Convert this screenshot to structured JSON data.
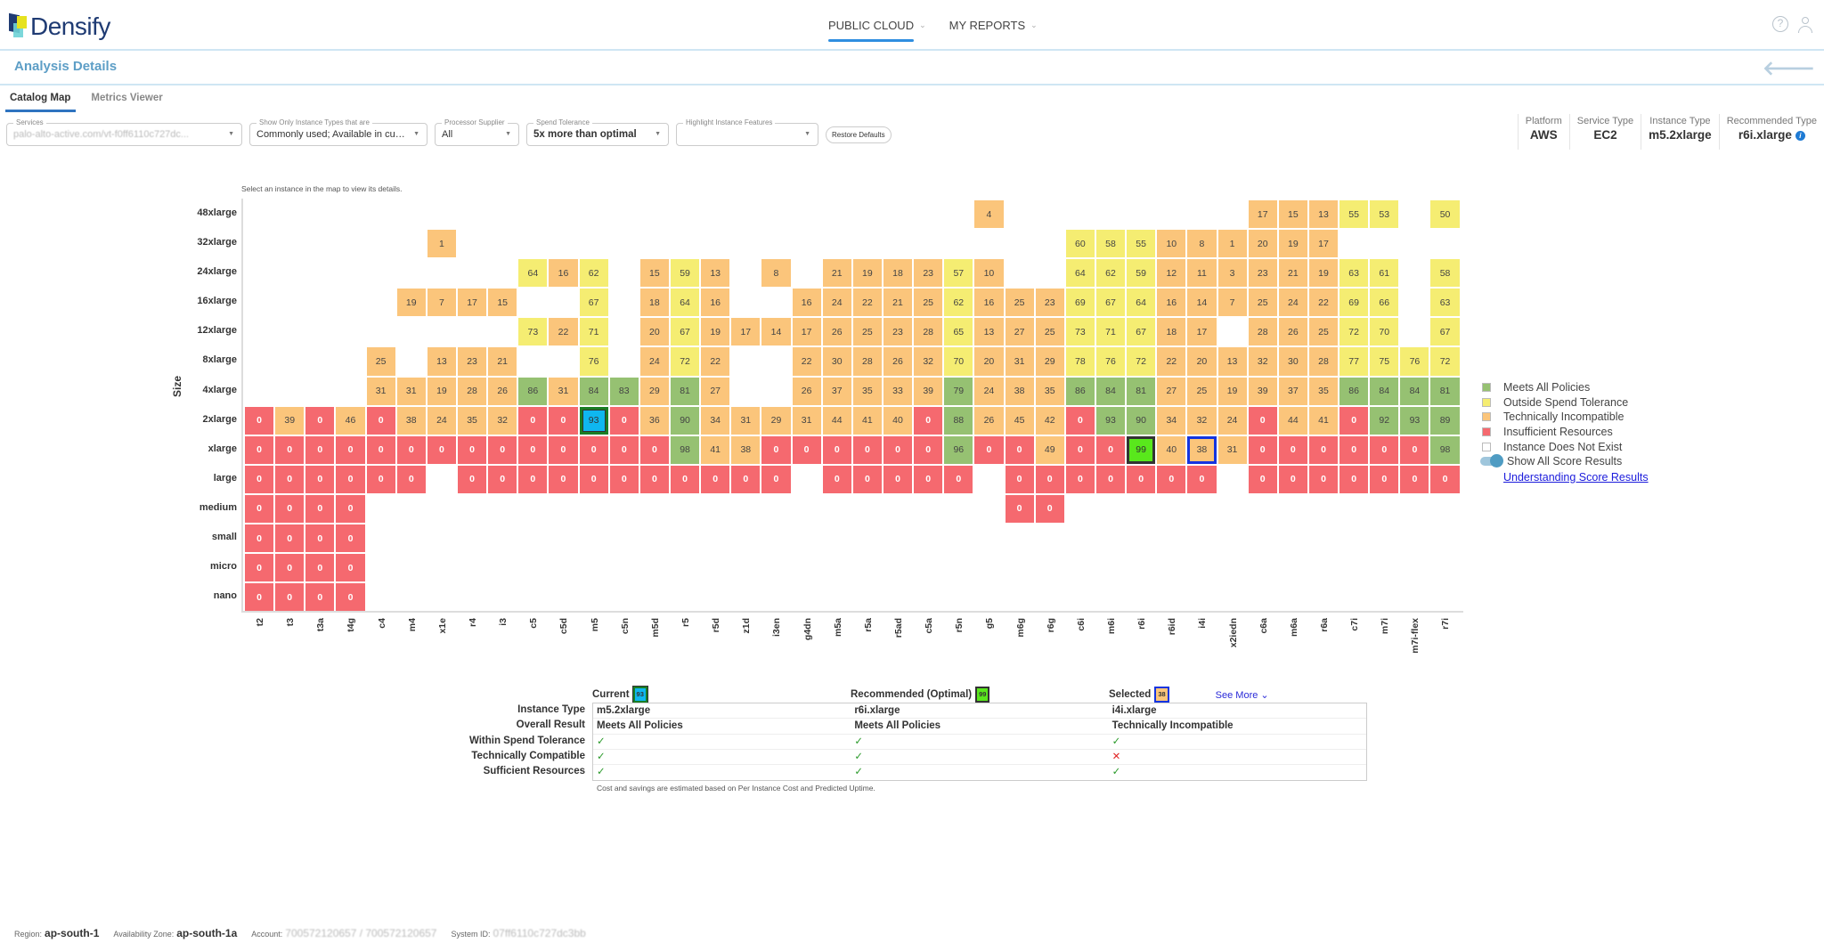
{
  "app": {
    "logo_text": "Densify"
  },
  "nav": {
    "items": [
      {
        "label": "PUBLIC CLOUD",
        "active": true
      },
      {
        "label": "MY REPORTS",
        "active": false
      }
    ],
    "chevron": "⌄"
  },
  "icons": {
    "help": "?",
    "back": "🡐",
    "info": "i"
  },
  "page": {
    "title": "Analysis Details"
  },
  "tabs": [
    {
      "label": "Catalog Map",
      "active": true
    },
    {
      "label": "Metrics Viewer",
      "active": false
    }
  ],
  "filters": {
    "services": {
      "label": "Services",
      "value": "palo-alto-active.com/vt-f0ff6110c727dc..."
    },
    "instance_types": {
      "label": "Show Only Instance Types that are",
      "value": "Commonly used; Available in curr..."
    },
    "processor": {
      "label": "Processor Supplier",
      "value": "All"
    },
    "spend_tolerance": {
      "label": "Spend Tolerance",
      "value": "5x more than optimal"
    },
    "highlight": {
      "label": "Highlight Instance Features",
      "value": ""
    },
    "restore_label": "Restore Defaults"
  },
  "summary": {
    "platform": {
      "label": "Platform",
      "value": "AWS"
    },
    "service_type": {
      "label": "Service Type",
      "value": "EC2"
    },
    "instance_type": {
      "label": "Instance Type",
      "value": "m5.2xlarge"
    },
    "recommended_type": {
      "label": "Recommended Type",
      "value": "r6i.xlarge"
    }
  },
  "map": {
    "hint": "Select an instance in the map to view its details.",
    "y_title": "Size"
  },
  "chart_data": {
    "type": "heatmap",
    "title": "Catalog Map",
    "ylabel": "Size",
    "xlabel": "",
    "x": [
      "t2",
      "t3",
      "t3a",
      "t4g",
      "c4",
      "m4",
      "x1e",
      "r4",
      "i3",
      "c5",
      "c5d",
      "m5",
      "c5n",
      "m5d",
      "r5",
      "r5d",
      "z1d",
      "i3en",
      "g4dn",
      "m5a",
      "r5a",
      "r5ad",
      "c5a",
      "r5n",
      "g5",
      "m6g",
      "r6g",
      "c6i",
      "m6i",
      "r6i",
      "r6id",
      "i4i",
      "x2iedn",
      "c6a",
      "m6a",
      "r6a",
      "c7i",
      "m7i",
      "m7i-flex",
      "r7i"
    ],
    "y": [
      "48xlarge",
      "32xlarge",
      "24xlarge",
      "16xlarge",
      "12xlarge",
      "8xlarge",
      "4xlarge",
      "2xlarge",
      "xlarge",
      "large",
      "medium",
      "small",
      "micro",
      "nano"
    ],
    "legend": {
      "G": "Meets All Policies",
      "Y": "Outside Spend Tolerance",
      "O": "Technically Incompatible",
      "R": "Insufficient Resources",
      "E": "Instance Does Not Exist"
    },
    "colors": {
      "G": "#96c172",
      "Y": "#f5ed72",
      "O": "#fbc57b",
      "R": "#f5696f",
      "current": "#0fb7f0",
      "recommended": "#59e81c",
      "selected_border": "#1434e0"
    },
    "highlights": {
      "current": "m5.2xlarge",
      "recommended": "r6i.xlarge",
      "selected": "i4i.xlarge"
    },
    "rows": [
      [
        "",
        "",
        "",
        "",
        "",
        "",
        "",
        "",
        "",
        "",
        "",
        "",
        "",
        "",
        "",
        "",
        "",
        "",
        "",
        "",
        "",
        "",
        "",
        "",
        "O4",
        "",
        "",
        "",
        "",
        "",
        "",
        "",
        "",
        "O17",
        "O15",
        "O13",
        "Y55",
        "Y53",
        "",
        "Y50"
      ],
      [
        "",
        "",
        "",
        "",
        "",
        "",
        "O1",
        "",
        "",
        "",
        "",
        "",
        "",
        "",
        "",
        "",
        "",
        "",
        "",
        "",
        "",
        "",
        "",
        "",
        "",
        "",
        "",
        "Y60",
        "Y58",
        "Y55",
        "O10",
        "O8",
        "O1",
        "O20",
        "O19",
        "O17",
        "",
        "",
        "",
        ""
      ],
      [
        "",
        "",
        "",
        "",
        "",
        "",
        "",
        "",
        "",
        "Y64",
        "O16",
        "Y62",
        "",
        "O15",
        "Y59",
        "O13",
        "",
        "O8",
        "",
        "O21",
        "O19",
        "O18",
        "O23",
        "Y57",
        "O10",
        "",
        "",
        "Y64",
        "Y62",
        "Y59",
        "O12",
        "O11",
        "O3",
        "O23",
        "O21",
        "O19",
        "Y63",
        "Y61",
        "",
        "Y58"
      ],
      [
        "",
        "",
        "",
        "",
        "",
        "O19",
        "O7",
        "O17",
        "O15",
        "",
        "",
        "Y67",
        "",
        "O18",
        "Y64",
        "O16",
        "",
        "",
        "O16",
        "O24",
        "O22",
        "O21",
        "O25",
        "Y62",
        "O16",
        "O25",
        "O23",
        "Y69",
        "Y67",
        "Y64",
        "O16",
        "O14",
        "O7",
        "O25",
        "O24",
        "O22",
        "Y69",
        "Y66",
        "",
        "Y63"
      ],
      [
        "",
        "",
        "",
        "",
        "",
        "",
        "",
        "",
        "",
        "Y73",
        "O22",
        "Y71",
        "",
        "O20",
        "Y67",
        "O19",
        "O17",
        "O14",
        "O17",
        "O26",
        "O25",
        "O23",
        "O28",
        "Y65",
        "O13",
        "O27",
        "O25",
        "Y73",
        "Y71",
        "Y67",
        "O18",
        "O17",
        "",
        "O28",
        "O26",
        "O25",
        "Y72",
        "Y70",
        "",
        "Y67"
      ],
      [
        "",
        "",
        "",
        "",
        "O25",
        "",
        "O13",
        "O23",
        "O21",
        "",
        "",
        "Y76",
        "",
        "O24",
        "Y72",
        "O22",
        "",
        "",
        "O22",
        "O30",
        "O28",
        "O26",
        "O32",
        "Y70",
        "O20",
        "O31",
        "O29",
        "Y78",
        "Y76",
        "Y72",
        "O22",
        "O20",
        "O13",
        "O32",
        "O30",
        "O28",
        "Y77",
        "Y75",
        "Y76",
        "Y72"
      ],
      [
        "",
        "",
        "",
        "",
        "O31",
        "O31",
        "O19",
        "O28",
        "O26",
        "G86",
        "O31",
        "G84",
        "G83",
        "O29",
        "G81",
        "O27",
        "",
        "",
        "O26",
        "O37",
        "O35",
        "O33",
        "O39",
        "G79",
        "O24",
        "O38",
        "O35",
        "G86",
        "G84",
        "G81",
        "O27",
        "O25",
        "O19",
        "O39",
        "O37",
        "O35",
        "G86",
        "G84",
        "G84",
        "G81"
      ],
      [
        "R0",
        "O39",
        "R0",
        "O46",
        "R0",
        "O38",
        "O24",
        "O35",
        "O32",
        "R0",
        "R0",
        "C93",
        "R0",
        "O36",
        "G90",
        "O34",
        "O31",
        "O29",
        "O31",
        "O44",
        "O41",
        "O40",
        "R0",
        "G88",
        "O26",
        "O45",
        "O42",
        "R0",
        "G93",
        "G90",
        "O34",
        "O32",
        "O24",
        "R0",
        "O44",
        "O41",
        "R0",
        "G92",
        "G93",
        "G89"
      ],
      [
        "R0",
        "R0",
        "R0",
        "R0",
        "R0",
        "R0",
        "R0",
        "R0",
        "R0",
        "R0",
        "R0",
        "R0",
        "R0",
        "R0",
        "G98",
        "O41",
        "O38",
        "R0",
        "R0",
        "R0",
        "R0",
        "R0",
        "R0",
        "G96",
        "R0",
        "R0",
        "O49",
        "R0",
        "R0",
        "P99",
        "O40",
        "S38",
        "O31",
        "R0",
        "R0",
        "R0",
        "R0",
        "R0",
        "R0",
        "G98"
      ],
      [
        "R0",
        "R0",
        "R0",
        "R0",
        "R0",
        "R0",
        "",
        "R0",
        "R0",
        "R0",
        "R0",
        "R0",
        "R0",
        "R0",
        "R0",
        "R0",
        "R0",
        "R0",
        "",
        "R0",
        "R0",
        "R0",
        "R0",
        "R0",
        "",
        "R0",
        "R0",
        "R0",
        "R0",
        "R0",
        "R0",
        "R0",
        "",
        "R0",
        "R0",
        "R0",
        "R0",
        "R0",
        "R0",
        "R0"
      ],
      [
        "R0",
        "R0",
        "R0",
        "R0",
        "",
        "",
        "",
        "",
        "",
        "",
        "",
        "",
        "",
        "",
        "",
        "",
        "",
        "",
        "",
        "",
        "",
        "",
        "",
        "",
        "",
        "R0",
        "R0",
        "",
        "",
        "",
        "",
        "",
        "",
        "",
        "",
        "",
        "",
        "",
        "",
        ""
      ],
      [
        "R0",
        "R0",
        "R0",
        "R0",
        "",
        "",
        "",
        "",
        "",
        "",
        "",
        "",
        "",
        "",
        "",
        "",
        "",
        "",
        "",
        "",
        "",
        "",
        "",
        "",
        "",
        "",
        "",
        "",
        "",
        "",
        "",
        "",
        "",
        "",
        "",
        "",
        "",
        "",
        "",
        ""
      ],
      [
        "R0",
        "R0",
        "R0",
        "R0",
        "",
        "",
        "",
        "",
        "",
        "",
        "",
        "",
        "",
        "",
        "",
        "",
        "",
        "",
        "",
        "",
        "",
        "",
        "",
        "",
        "",
        "",
        "",
        "",
        "",
        "",
        "",
        "",
        "",
        "",
        "",
        "",
        "",
        "",
        "",
        ""
      ],
      [
        "R0",
        "R0",
        "R0",
        "R0",
        "",
        "",
        "",
        "",
        "",
        "",
        "",
        "",
        "",
        "",
        "",
        "",
        "",
        "",
        "",
        "",
        "",
        "",
        "",
        "",
        "",
        "",
        "",
        "",
        "",
        "",
        "",
        "",
        "",
        "",
        "",
        "",
        "",
        "",
        "",
        ""
      ]
    ]
  },
  "legend": {
    "items": [
      {
        "label": "Meets All Policies",
        "color": "#96c172"
      },
      {
        "label": "Outside Spend Tolerance",
        "color": "#f5ed72"
      },
      {
        "label": "Technically Incompatible",
        "color": "#fbc57b"
      },
      {
        "label": "Insufficient Resources",
        "color": "#f5696f"
      },
      {
        "label": "Instance Does Not Exist",
        "color": "#ffffff"
      }
    ],
    "toggle_label": "Show All Score Results",
    "link_label": "Understanding Score Results"
  },
  "compare": {
    "headers": {
      "current": {
        "label": "Current",
        "score": "93"
      },
      "recommended": {
        "label": "Recommended (Optimal)",
        "score": "99"
      },
      "selected": {
        "label": "Selected",
        "score": "38"
      },
      "see_more": "See More"
    },
    "row_labels": [
      "Instance Type",
      "Overall Result",
      "Within Spend Tolerance",
      "Technically Compatible",
      "Sufficient Resources"
    ],
    "rows": [
      [
        "m5.2xlarge",
        "r6i.xlarge",
        "i4i.xlarge"
      ],
      [
        "Meets All Policies",
        "Meets All Policies",
        "Technically Incompatible"
      ],
      [
        "✓",
        "✓",
        "✓"
      ],
      [
        "✓",
        "✓",
        "✕"
      ],
      [
        "✓",
        "✓",
        "✓"
      ]
    ],
    "note": "Cost and savings are estimated based on Per Instance Cost and Predicted Uptime."
  },
  "footer": {
    "region_label": "Region:",
    "region": "ap-south-1",
    "az_label": "Availability Zone:",
    "az": "ap-south-1a",
    "account_label": "Account:",
    "account": "700572120657 / 700572120657",
    "system_label": "System ID:",
    "system": "07ff6110c727dc3bb"
  }
}
